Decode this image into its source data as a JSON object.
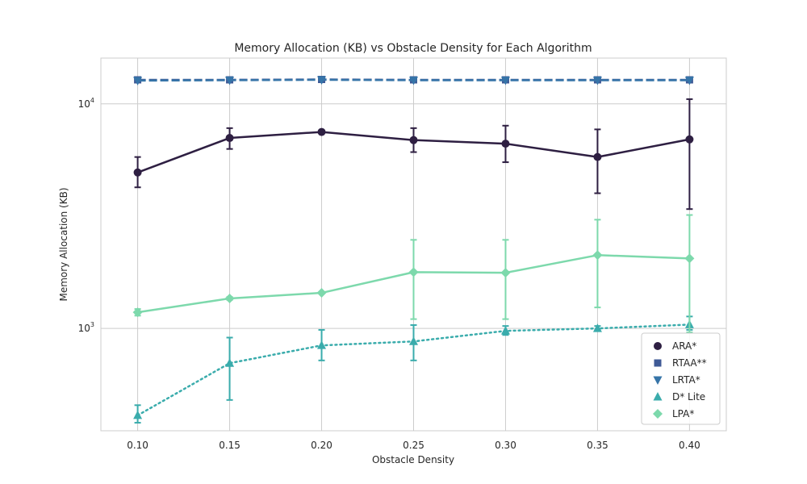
{
  "chart_data": {
    "type": "line",
    "title": "Memory Allocation (KB) vs Obstacle Density for Each Algorithm",
    "xlabel": "Obstacle Density",
    "ylabel": "Memory Allocation (KB)",
    "yscale": "log",
    "xlim": [
      0.08,
      0.42
    ],
    "ylim": [
      350,
      16000
    ],
    "x": [
      0.1,
      0.15,
      0.2,
      0.25,
      0.3,
      0.35,
      0.4
    ],
    "x_tick_labels": [
      "0.10",
      "0.15",
      "0.20",
      "0.25",
      "0.30",
      "0.35",
      "0.40"
    ],
    "y_ticks": [
      {
        "value": 1000,
        "base": "10",
        "exp": "3"
      },
      {
        "value": 10000,
        "base": "10",
        "exp": "4"
      }
    ],
    "grid": true,
    "legend_position": "lower-right",
    "series": [
      {
        "name": "ARA*",
        "marker": "circle",
        "color": "#2e1f42",
        "line_style": "solid",
        "values": [
          4950,
          7050,
          7500,
          6900,
          6650,
          5800,
          6950
        ],
        "err_low": [
          4250,
          6300,
          7500,
          6100,
          5500,
          4000,
          3400
        ],
        "err_high": [
          5800,
          7800,
          7500,
          7800,
          8000,
          7700,
          10500
        ]
      },
      {
        "name": "RTAA**",
        "marker": "square",
        "color": "#3f5a96",
        "line_style": "dashed",
        "values": [
          12800,
          12800,
          12850,
          12800,
          12800,
          12800,
          12800
        ],
        "err_low": [
          12800,
          12800,
          12850,
          12800,
          12800,
          12800,
          12800
        ],
        "err_high": [
          12800,
          12800,
          12850,
          12800,
          12800,
          12800,
          12800
        ]
      },
      {
        "name": "LRTA*",
        "marker": "triangle-down",
        "color": "#3674a8",
        "line_style": "dashed",
        "values": [
          12700,
          12750,
          12800,
          12750,
          12750,
          12750,
          12750
        ],
        "err_low": [
          12700,
          12750,
          12800,
          12750,
          12750,
          12750,
          12750
        ],
        "err_high": [
          12700,
          12750,
          12800,
          12750,
          12750,
          12750,
          12750
        ]
      },
      {
        "name": "D* Lite",
        "marker": "triangle-up",
        "color": "#3aacac",
        "line_style": "dotted",
        "values": [
          410,
          700,
          840,
          875,
          975,
          1000,
          1040
        ],
        "err_low": [
          380,
          480,
          720,
          720,
          935,
          985,
          985
        ],
        "err_high": [
          455,
          910,
          985,
          1035,
          1025,
          1025,
          1130
        ]
      },
      {
        "name": "LPA*",
        "marker": "diamond",
        "color": "#7dd9ac",
        "line_style": "solid",
        "values": [
          1180,
          1360,
          1440,
          1780,
          1770,
          2120,
          2050
        ],
        "err_low": [
          1140,
          1340,
          1430,
          1100,
          1100,
          1240,
          960
        ],
        "err_high": [
          1220,
          1380,
          1450,
          2480,
          2480,
          3050,
          3200
        ]
      }
    ]
  }
}
